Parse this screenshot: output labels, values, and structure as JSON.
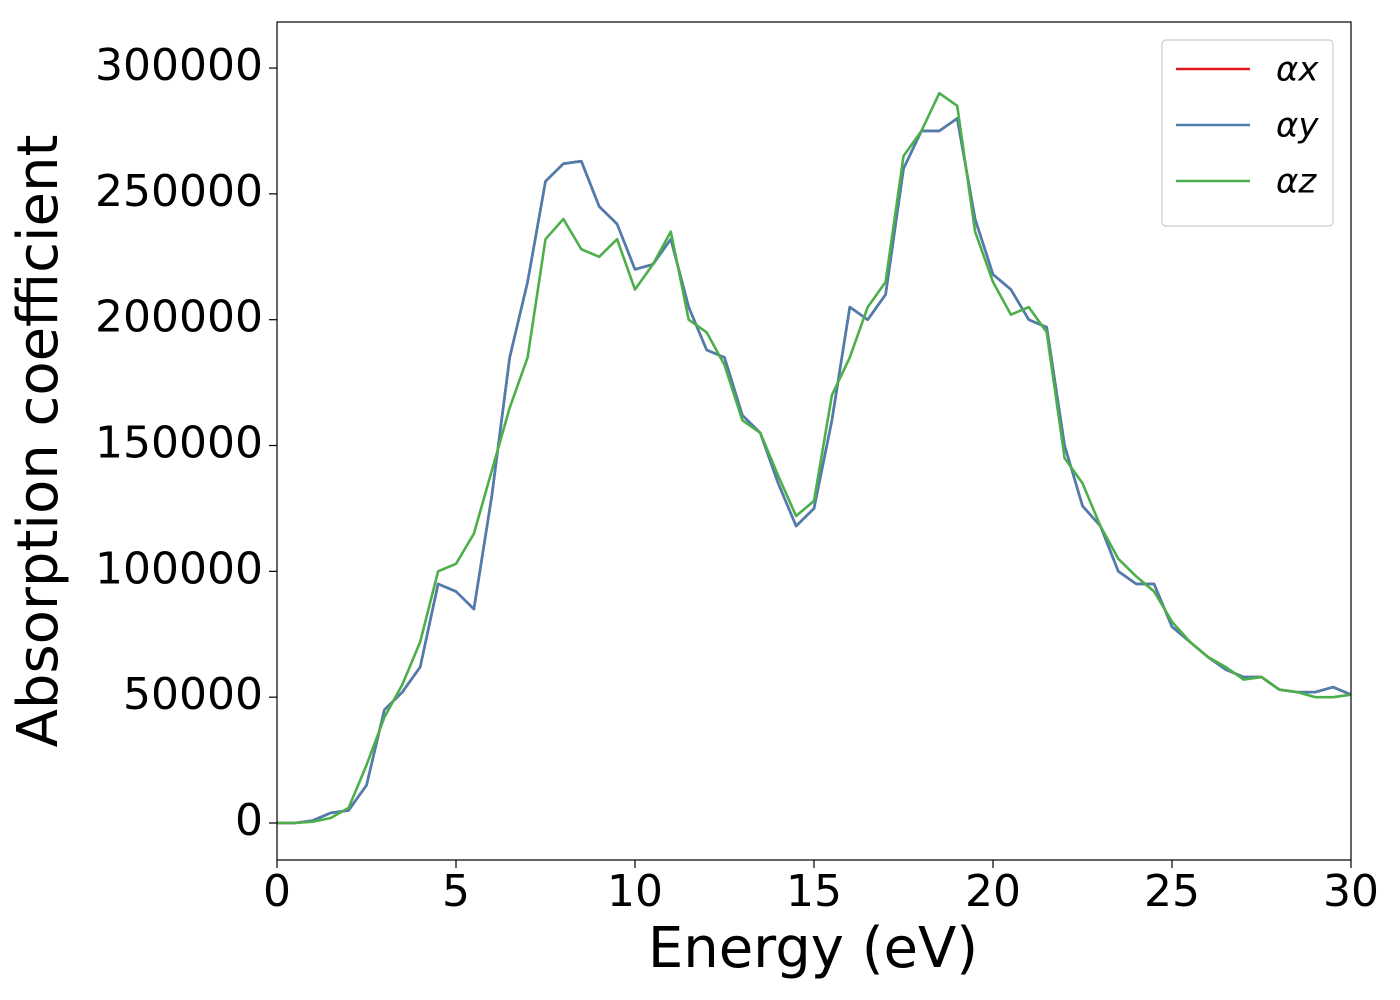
{
  "chart_data": {
    "type": "line",
    "xlabel": "Energy (eV)",
    "ylabel": "Absorption coefficient",
    "x": [
      0,
      0.5,
      1,
      1.5,
      2,
      2.5,
      3,
      3.5,
      4,
      4.5,
      5,
      5.5,
      6,
      6.5,
      7,
      7.5,
      8,
      8.5,
      9,
      9.5,
      10,
      10.5,
      11,
      11.5,
      12,
      12.5,
      13,
      13.5,
      14,
      14.5,
      15,
      15.5,
      16,
      16.5,
      17,
      17.5,
      18,
      18.5,
      19,
      19.5,
      20,
      20.5,
      21,
      21.5,
      22,
      22.5,
      23,
      23.5,
      24,
      24.5,
      25,
      25.5,
      26,
      26.5,
      27,
      27.5,
      28,
      28.5,
      29,
      29.5,
      30
    ],
    "series": [
      {
        "name": "αx",
        "color": "#e41a1c",
        "values": [
          0,
          0,
          1000,
          4000,
          5000,
          15000,
          45000,
          52000,
          62000,
          95000,
          92000,
          85000,
          130000,
          185000,
          215000,
          255000,
          262000,
          263000,
          245000,
          238000,
          220000,
          222000,
          232000,
          205000,
          188000,
          185000,
          162000,
          155000,
          135000,
          118000,
          125000,
          160000,
          205000,
          200000,
          210000,
          260000,
          275000,
          275000,
          280000,
          240000,
          218000,
          212000,
          200000,
          197000,
          150000,
          126000,
          118000,
          100000,
          95000,
          95000,
          78000,
          72000,
          66000,
          61000,
          58000,
          58000,
          53000,
          52000,
          52000,
          54000,
          51000
        ]
      },
      {
        "name": "αy",
        "color": "#4a7fb0",
        "values": [
          0,
          0,
          1000,
          4000,
          5000,
          15000,
          45000,
          52000,
          62000,
          95000,
          92000,
          85000,
          130000,
          185000,
          215000,
          255000,
          262000,
          263000,
          245000,
          238000,
          220000,
          222000,
          232000,
          205000,
          188000,
          185000,
          162000,
          155000,
          135000,
          118000,
          125000,
          160000,
          205000,
          200000,
          210000,
          260000,
          275000,
          275000,
          280000,
          240000,
          218000,
          212000,
          200000,
          197000,
          150000,
          126000,
          118000,
          100000,
          95000,
          95000,
          78000,
          72000,
          66000,
          61000,
          58000,
          58000,
          53000,
          52000,
          52000,
          54000,
          51000
        ]
      },
      {
        "name": "αz",
        "color": "#4daf4a",
        "values": [
          0,
          0,
          500,
          2000,
          6000,
          23000,
          42000,
          55000,
          72000,
          100000,
          103000,
          115000,
          140000,
          165000,
          185000,
          232000,
          240000,
          228000,
          225000,
          232000,
          212000,
          222000,
          235000,
          200000,
          195000,
          182000,
          160000,
          155000,
          138000,
          122000,
          128000,
          170000,
          185000,
          205000,
          215000,
          265000,
          275000,
          290000,
          285000,
          235000,
          215000,
          202000,
          205000,
          195000,
          145000,
          135000,
          118000,
          105000,
          98000,
          92000,
          80000,
          72000,
          66000,
          62000,
          57000,
          58000,
          53000,
          52000,
          50000,
          50000,
          51000
        ]
      }
    ],
    "xlim": [
      0,
      30
    ],
    "ylim": [
      -14700,
      318300
    ],
    "xticks": [
      0,
      5,
      10,
      15,
      20,
      25,
      30
    ],
    "yticks": [
      0,
      50000,
      100000,
      150000,
      200000,
      250000,
      300000
    ],
    "legend": "upper right"
  }
}
